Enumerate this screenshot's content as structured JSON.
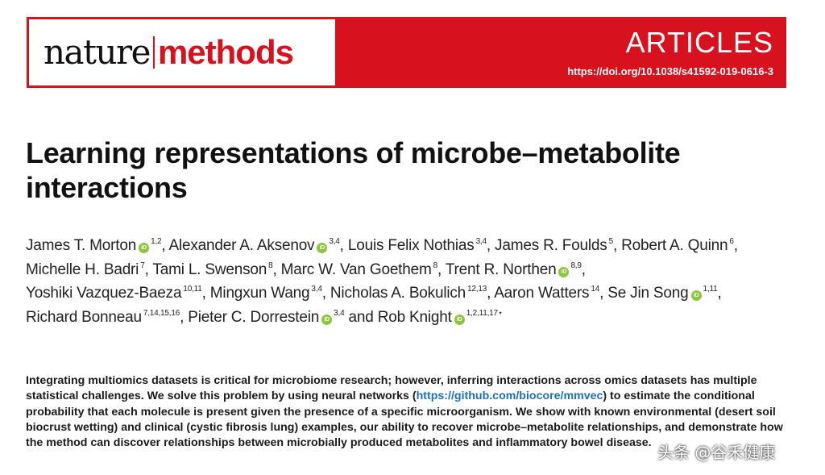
{
  "header": {
    "journal_part1": "nature",
    "journal_part2": "methods",
    "section": "ARTICLES",
    "doi": "https://doi.org/10.1038/s41592-019-0616-3"
  },
  "title": "Learning representations of microbe–metabolite interactions",
  "authors": [
    {
      "name": "James T. Morton",
      "orcid": true,
      "aff": "1,2",
      "sep": ", "
    },
    {
      "name": "Alexander A. Aksenov",
      "orcid": true,
      "aff": "3,4",
      "sep": ", "
    },
    {
      "name": "Louis Felix Nothias",
      "orcid": false,
      "aff": "3,4",
      "sep": ", "
    },
    {
      "name": "James R. Foulds",
      "orcid": false,
      "aff": "5",
      "sep": ", "
    },
    {
      "name": "Robert A. Quinn",
      "orcid": false,
      "aff": "6",
      "sep": ", "
    },
    {
      "name": "Michelle H. Badri",
      "orcid": false,
      "aff": "7",
      "sep": ", "
    },
    {
      "name": "Tami L. Swenson",
      "orcid": false,
      "aff": "8",
      "sep": ", "
    },
    {
      "name": "Marc W. Van Goethem",
      "orcid": false,
      "aff": "8",
      "sep": ", "
    },
    {
      "name": "Trent R. Northen",
      "orcid": true,
      "aff": "8,9",
      "sep": ", "
    },
    {
      "name": "Yoshiki Vazquez-Baeza",
      "orcid": false,
      "aff": "10,11",
      "sep": ", "
    },
    {
      "name": "Mingxun Wang",
      "orcid": false,
      "aff": "3,4",
      "sep": ", "
    },
    {
      "name": "Nicholas A. Bokulich",
      "orcid": false,
      "aff": "12,13",
      "sep": ", "
    },
    {
      "name": "Aaron Watters",
      "orcid": false,
      "aff": "14",
      "sep": ", "
    },
    {
      "name": "Se Jin Song",
      "orcid": true,
      "aff": "1,11",
      "sep": ", "
    },
    {
      "name": "Richard Bonneau",
      "orcid": false,
      "aff": "7,14,15,16",
      "sep": ", "
    },
    {
      "name": "Pieter C. Dorrestein",
      "orcid": true,
      "aff": "3,4",
      "sep": " and "
    },
    {
      "name": "Rob Knight",
      "orcid": true,
      "aff": "1,2,11,17⋆",
      "sep": ""
    }
  ],
  "orcid_label": "iD",
  "abstract": {
    "text_before": "Integrating multiomics datasets is critical for microbiome research; however, inferring interactions across omics datasets has multiple statistical challenges. We solve this problem by using neural networks (",
    "link": "https://github.com/biocore/mmvec",
    "text_after": ") to estimate the conditional probability that each molecule is present given the presence of a specific microorganism. We show with known environmental (desert soil biocrust wetting) and clinical (cystic fibrosis lung) examples, our ability to recover microbe–metabolite relationships, and demonstrate how the method can discover relationships between microbially produced metabolites and inflammatory bowel disease."
  },
  "watermark": "头条 @谷禾健康",
  "colors": {
    "brand_red": "#d7111d",
    "orcid_green": "#8cc63f",
    "link_blue": "#1f6fb2"
  }
}
